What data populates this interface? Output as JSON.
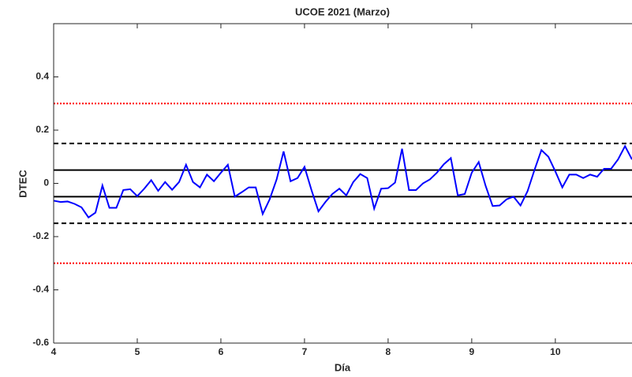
{
  "chart_data": {
    "type": "line",
    "title": "UCOE 2021 (Marzo)",
    "x_label": "Día",
    "y_label": "DTEC",
    "xlim": [
      4,
      10.9167
    ],
    "ylim": [
      -0.6,
      0.6
    ],
    "xticks": [
      4,
      5,
      6,
      7,
      8,
      9,
      10
    ],
    "yticks": [
      -0.6,
      -0.4,
      -0.2,
      0,
      0.2,
      0.4
    ],
    "reference_lines": [
      {
        "value": 0.3,
        "color": "#ff0000",
        "style": "dotted"
      },
      {
        "value": -0.3,
        "color": "#ff0000",
        "style": "dotted"
      },
      {
        "value": 0.15,
        "color": "#000000",
        "style": "dashed"
      },
      {
        "value": -0.15,
        "color": "#000000",
        "style": "dashed"
      },
      {
        "value": 0.05,
        "color": "#000000",
        "style": "solid"
      },
      {
        "value": -0.05,
        "color": "#000000",
        "style": "solid"
      }
    ],
    "series": [
      {
        "name": "DTEC",
        "color": "#0000ff",
        "x": [
          4,
          4.0833,
          4.1667,
          4.25,
          4.3333,
          4.4167,
          4.5,
          4.5833,
          4.6667,
          4.75,
          4.8333,
          4.9167,
          5,
          5.0833,
          5.1667,
          5.25,
          5.3333,
          5.4167,
          5.5,
          5.5833,
          5.6667,
          5.75,
          5.8333,
          5.9167,
          6,
          6.0833,
          6.1667,
          6.25,
          6.3333,
          6.4167,
          6.5,
          6.5833,
          6.6667,
          6.75,
          6.8333,
          6.9167,
          7,
          7.0833,
          7.1667,
          7.25,
          7.3333,
          7.4167,
          7.5,
          7.5833,
          7.6667,
          7.75,
          7.8333,
          7.9167,
          8,
          8.0833,
          8.1667,
          8.25,
          8.3333,
          8.4167,
          8.5,
          8.5833,
          8.6667,
          8.75,
          8.8333,
          8.9167,
          9,
          9.0833,
          9.1667,
          9.25,
          9.3333,
          9.4167,
          9.5,
          9.5833,
          9.6667,
          9.75,
          9.8333,
          9.9167,
          10,
          10.0833,
          10.1667,
          10.25,
          10.3333,
          10.4167,
          10.5,
          10.5833,
          10.6667,
          10.75,
          10.8333,
          10.9167
        ],
        "values": [
          -0.065,
          -0.07,
          -0.068,
          -0.077,
          -0.09,
          -0.128,
          -0.11,
          -0.008,
          -0.092,
          -0.092,
          -0.025,
          -0.022,
          -0.048,
          -0.02,
          0.012,
          -0.028,
          0.005,
          -0.024,
          0.005,
          0.07,
          0.005,
          -0.015,
          0.033,
          0.008,
          0.04,
          0.07,
          -0.05,
          -0.033,
          -0.015,
          -0.015,
          -0.115,
          -0.06,
          0.015,
          0.12,
          0.008,
          0.02,
          0.062,
          -0.025,
          -0.105,
          -0.07,
          -0.04,
          -0.02,
          -0.045,
          0.005,
          0.035,
          0.02,
          -0.095,
          -0.02,
          -0.018,
          0.003,
          0.13,
          -0.025,
          -0.025,
          0,
          0.015,
          0.04,
          0.072,
          0.095,
          -0.045,
          -0.04,
          0.04,
          0.08,
          -0.01,
          -0.085,
          -0.083,
          -0.06,
          -0.05,
          -0.083,
          -0.03,
          0.05,
          0.125,
          0.1,
          0.045,
          -0.015,
          0.033,
          0.033,
          0.02,
          0.033,
          0.025,
          0.055,
          0.055,
          0.09,
          0.14,
          0.09
        ]
      }
    ]
  }
}
